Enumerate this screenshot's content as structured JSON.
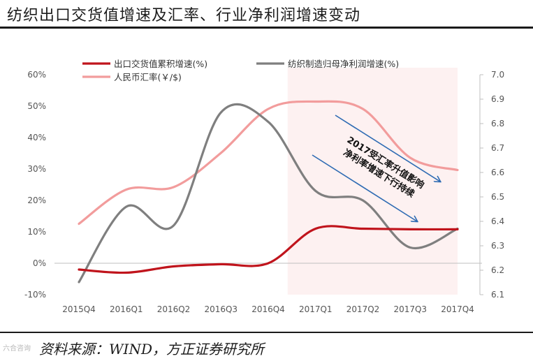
{
  "header": {
    "title": "纺织出口交货值增速及汇率、行业净利润增速变动"
  },
  "footer": {
    "source": "资料来源：WIND，方正证券研究所",
    "watermark": "六合咨询"
  },
  "colors": {
    "export": "#c0141c",
    "profit": "#7f7f7f",
    "fx": "#f29c9c",
    "shade": "#fdf1f1",
    "arrow": "#2e6bb3"
  },
  "chart_data": {
    "type": "line",
    "categories": [
      "2015Q4",
      "2016Q1",
      "2016Q2",
      "2016Q3",
      "2016Q4",
      "2017Q1",
      "2017Q2",
      "2017Q3",
      "2017Q4"
    ],
    "y_left": {
      "min": -10,
      "max": 60,
      "step": 10,
      "labels": [
        "-10%",
        "0%",
        "10%",
        "20%",
        "30%",
        "40%",
        "50%",
        "60%"
      ]
    },
    "y_right": {
      "min": 6.1,
      "max": 7.0,
      "step": 0.1,
      "labels": [
        "6.1",
        "6.2",
        "6.3",
        "6.4",
        "6.5",
        "6.6",
        "6.7",
        "6.8",
        "6.9",
        "7.0"
      ]
    },
    "series": [
      {
        "name": "出口交货值累积增速(%)",
        "axis": "left",
        "values": [
          -2,
          -3,
          -1,
          -0.3,
          0,
          11,
          11,
          10.8,
          10.8
        ]
      },
      {
        "name": "纺织制造归母净利润增速(%)",
        "axis": "left",
        "values": [
          -6,
          18,
          12,
          48,
          45,
          23,
          20,
          5,
          11
        ]
      },
      {
        "name": "人民币汇率(￥/$)",
        "axis": "right",
        "values": [
          6.39,
          6.53,
          6.54,
          6.68,
          6.86,
          6.89,
          6.86,
          6.66,
          6.61
        ]
      }
    ],
    "shaded_region": {
      "from": "2017Q1",
      "to": "2017Q4"
    },
    "annotation": [
      "2017受汇率升值影响",
      "净利率增速下行持续"
    ]
  }
}
